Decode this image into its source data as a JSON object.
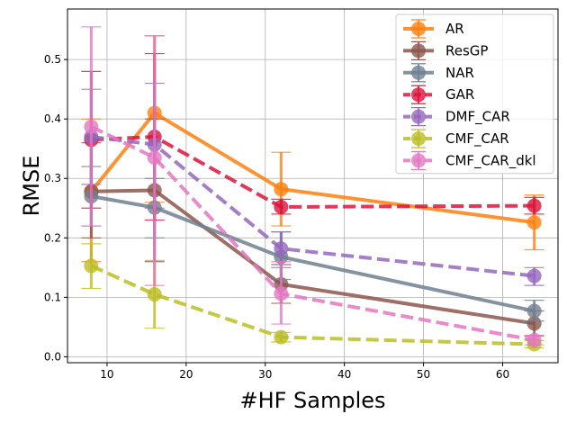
{
  "chart_data": {
    "type": "line",
    "title": "",
    "xlabel": "#HF Samples",
    "ylabel": "RMSE",
    "xlim": [
      5,
      67
    ],
    "ylim": [
      -0.01,
      0.585
    ],
    "xticks": [
      10,
      20,
      30,
      40,
      50,
      60
    ],
    "yticks": [
      0.0,
      0.1,
      0.2,
      0.3,
      0.4,
      0.5
    ],
    "xtick_labels": [
      "10",
      "20",
      "30",
      "40",
      "50",
      "60"
    ],
    "ytick_labels": [
      "0.0",
      "0.1",
      "0.2",
      "0.3",
      "0.4",
      "0.5"
    ],
    "grid": true,
    "legend_position": "top-right",
    "x": [
      8,
      16,
      32,
      64
    ],
    "series": [
      {
        "name": "AR",
        "color": "#ff7f0e",
        "dash": "solid",
        "values": [
          0.278,
          0.41,
          0.282,
          0.226
        ],
        "err_low": [
          0.16,
          0.26,
          0.22,
          0.18
        ],
        "err_high": [
          0.4,
          0.54,
          0.344,
          0.272
        ]
      },
      {
        "name": "ResGP",
        "color": "#8c564b",
        "dash": "solid",
        "values": [
          0.278,
          0.28,
          0.122,
          0.056
        ],
        "err_low": [
          0.2,
          0.16,
          0.09,
          0.035
        ],
        "err_high": [
          0.36,
          0.4,
          0.155,
          0.077
        ]
      },
      {
        "name": "NAR",
        "color": "#708090",
        "dash": "solid",
        "values": [
          0.27,
          0.251,
          0.168,
          0.077
        ],
        "err_low": [
          0.22,
          0.2,
          0.13,
          0.06
        ],
        "err_high": [
          0.32,
          0.3,
          0.21,
          0.095
        ]
      },
      {
        "name": "GAR",
        "color": "#dc143c",
        "dash": "dashed",
        "values": [
          0.365,
          0.37,
          0.252,
          0.254
        ],
        "err_low": [
          0.25,
          0.23,
          0.24,
          0.24
        ],
        "err_high": [
          0.48,
          0.51,
          0.265,
          0.268
        ]
      },
      {
        "name": "DMF_CAR",
        "color": "#9467bd",
        "dash": "dashed",
        "values": [
          0.37,
          0.357,
          0.182,
          0.136
        ],
        "err_low": [
          0.29,
          0.25,
          0.15,
          0.12
        ],
        "err_high": [
          0.45,
          0.46,
          0.21,
          0.15
        ]
      },
      {
        "name": "CMF_CAR",
        "color": "#bcbd22",
        "dash": "dashed",
        "values": [
          0.153,
          0.105,
          0.033,
          0.021
        ],
        "err_low": [
          0.115,
          0.048,
          0.025,
          0.015
        ],
        "err_high": [
          0.19,
          0.162,
          0.041,
          0.027
        ]
      },
      {
        "name": "CMF_CAR_dkl",
        "color": "#e377c2",
        "dash": "dashed",
        "values": [
          0.387,
          0.335,
          0.106,
          0.028
        ],
        "err_low": [
          0.22,
          0.12,
          0.055,
          0.02
        ],
        "err_high": [
          0.555,
          0.54,
          0.16,
          0.036
        ]
      }
    ]
  }
}
